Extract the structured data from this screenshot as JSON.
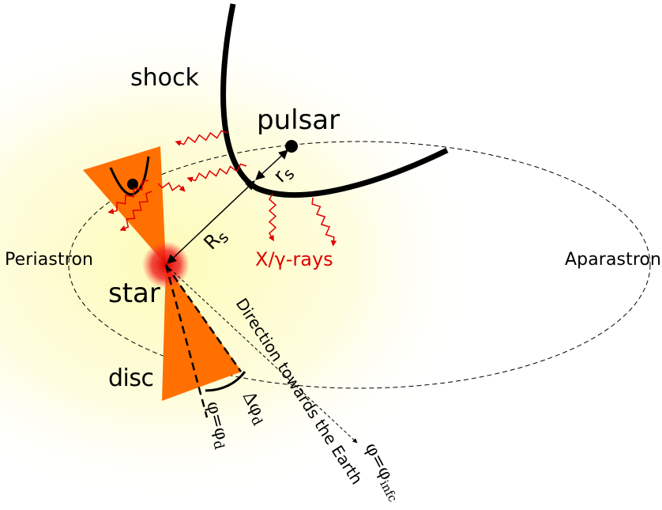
{
  "labels": {
    "shock": "shock",
    "pulsar": "pulsar",
    "rs": {
      "base": "r",
      "sub": "s"
    },
    "Rs": {
      "base": "R",
      "sub": "s"
    },
    "periastron": "Periastron",
    "apastron": "Aparastron",
    "star": "star",
    "emission": "X/γ-rays",
    "direction": "Direction towards the Earth",
    "disc": "disc",
    "delta_phi": {
      "base": "Δφ",
      "sub": "d"
    },
    "phi_d": {
      "base": "φ=φ",
      "sub": "d"
    },
    "phi_infc": {
      "base": "φ=φ",
      "sub": "infc"
    }
  }
}
